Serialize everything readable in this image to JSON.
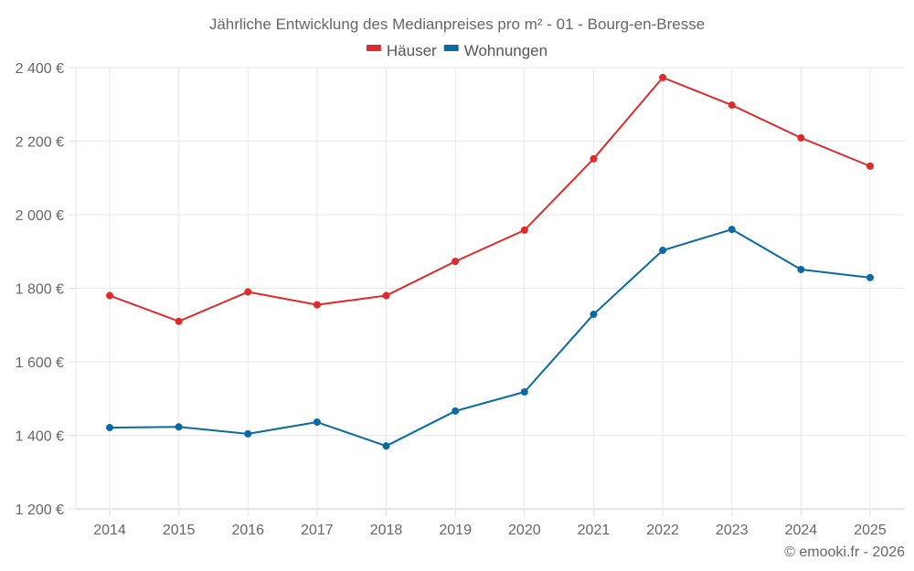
{
  "chart_data": {
    "type": "line",
    "title": "Jährliche Entwicklung des Medianpreises pro m² - 01 - Bourg-en-Bresse",
    "xlabel": "",
    "ylabel": "",
    "x": [
      "2014",
      "2015",
      "2016",
      "2017",
      "2018",
      "2019",
      "2020",
      "2021",
      "2022",
      "2023",
      "2024",
      "2025"
    ],
    "series": [
      {
        "name": "Häuser",
        "color": "#dd2c2c",
        "values": [
          1780,
          1710,
          1790,
          1755,
          1780,
          1873,
          1958,
          2152,
          2373,
          2298,
          2209,
          2132
        ]
      },
      {
        "name": "Wohnungen",
        "color": "#0a6aa1",
        "values": [
          1421,
          1423,
          1404,
          1436,
          1371,
          1466,
          1518,
          1729,
          1903,
          1960,
          1851,
          1829
        ]
      }
    ],
    "ylim": [
      1200,
      2400
    ],
    "yticks": [
      1200,
      1400,
      1600,
      1800,
      2000,
      2200,
      2400
    ],
    "ytick_labels": [
      "1 200 €",
      "1 400 €",
      "1 600 €",
      "1 800 €",
      "2 000 €",
      "2 200 €",
      "2 400 €"
    ],
    "grid": true,
    "legend_position": "top-center"
  },
  "credit": "© emooki.fr - 2026"
}
